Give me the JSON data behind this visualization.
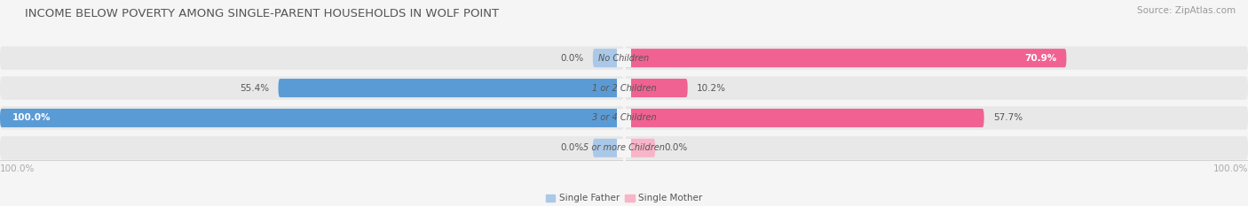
{
  "title": "INCOME BELOW POVERTY AMONG SINGLE-PARENT HOUSEHOLDS IN WOLF POINT",
  "source": "Source: ZipAtlas.com",
  "categories": [
    "No Children",
    "1 or 2 Children",
    "3 or 4 Children",
    "5 or more Children"
  ],
  "single_father": [
    0.0,
    55.4,
    100.0,
    0.0
  ],
  "single_mother": [
    70.9,
    10.2,
    57.7,
    0.0
  ],
  "father_color_full": "#5b9bd5",
  "father_color_stub": "#aac8e8",
  "mother_color_full": "#f06292",
  "mother_color_stub": "#f8b4c8",
  "bg_color": "#f5f5f5",
  "bar_bg_color": "#e8e8e8",
  "title_color": "#555555",
  "source_color": "#999999",
  "label_color": "#555555",
  "bottom_label_color": "#aaaaaa",
  "title_fontsize": 9.5,
  "source_fontsize": 7.5,
  "label_fontsize": 7.5,
  "cat_fontsize": 7,
  "axis_max": 100.0,
  "stub_size": 5.0,
  "legend_label_father": "Single Father",
  "legend_label_mother": "Single Mother"
}
